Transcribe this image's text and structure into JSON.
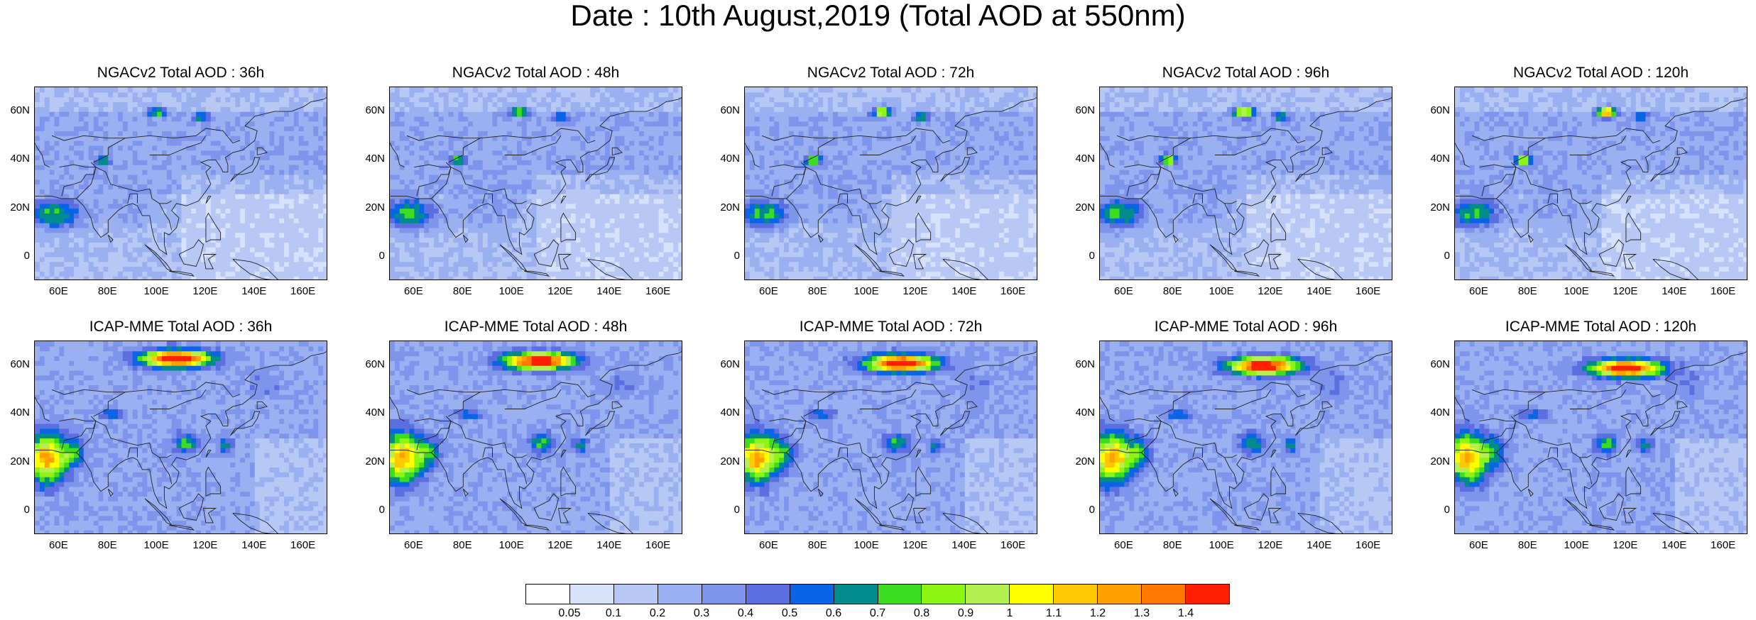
{
  "title": "Date : 10th August,2019 (Total AOD at 550nm)",
  "panels": [
    {
      "title": "NGACv2 Total AOD : 36h",
      "field": "ngac"
    },
    {
      "title": "NGACv2 Total AOD : 48h",
      "field": "ngac"
    },
    {
      "title": "NGACv2 Total AOD : 72h",
      "field": "ngac"
    },
    {
      "title": "NGACv2 Total AOD : 96h",
      "field": "ngac"
    },
    {
      "title": "NGACv2 Total AOD : 120h",
      "field": "ngac"
    },
    {
      "title": "ICAP-MME Total AOD : 36h",
      "field": "icap"
    },
    {
      "title": "ICAP-MME Total AOD : 48h",
      "field": "icap"
    },
    {
      "title": "ICAP-MME Total AOD : 72h",
      "field": "icap"
    },
    {
      "title": "ICAP-MME Total AOD : 96h",
      "field": "icap"
    },
    {
      "title": "ICAP-MME Total AOD : 120h",
      "field": "icap"
    }
  ],
  "lat_ticks": [
    "60N",
    "40N",
    "20N",
    "0"
  ],
  "lat_values": [
    60,
    40,
    20,
    0
  ],
  "lon_ticks": [
    "60E",
    "80E",
    "100E",
    "120E",
    "140E",
    "160E"
  ],
  "lon_values": [
    60,
    80,
    100,
    120,
    140,
    160
  ],
  "map_extent": {
    "lon": [
      50,
      170
    ],
    "lat": [
      -10,
      70
    ]
  },
  "colorbar": {
    "labels": [
      "0.05",
      "0.1",
      "0.2",
      "0.3",
      "0.4",
      "0.5",
      "0.6",
      "0.7",
      "0.8",
      "0.9",
      "1",
      "1.1",
      "1.2",
      "1.3",
      "1.4"
    ],
    "colors": [
      "#ffffff",
      "#d6e2fa",
      "#b7c8f5",
      "#9ab0f0",
      "#7f95ec",
      "#5c6ee0",
      "#0a64e6",
      "#008c8c",
      "#3cdc1e",
      "#8cf514",
      "#b4f050",
      "#ffff00",
      "#ffc800",
      "#ffa000",
      "#ff7800",
      "#ff1e00"
    ]
  }
}
